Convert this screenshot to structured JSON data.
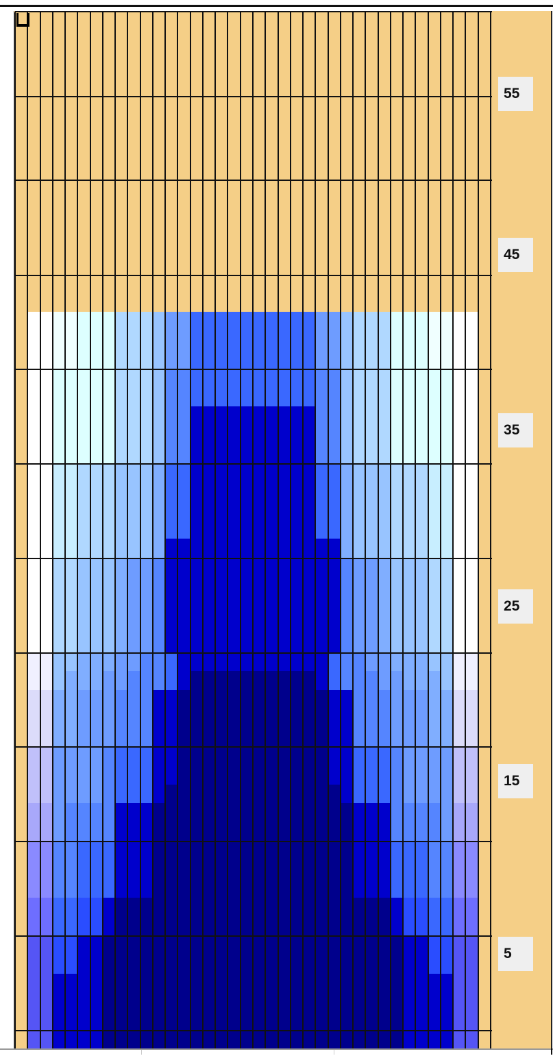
{
  "grid": {
    "columns": 38,
    "symmetric": true,
    "palette": {
      "T": "#F5CF87",
      "W": "#FFFFFF",
      "a": "#F0FFFF",
      "b": "#DDFFFF",
      "c": "#C8EEFF",
      "d": "#B0D8FF",
      "e": "#98C4FF",
      "f": "#80AEFF",
      "g": "#6E9CFF",
      "h": "#5585FF",
      "i": "#3A68FF",
      "j": "#2A4DFF",
      "k": "#0000CC",
      "n": "#00008C",
      "p": "#F0F0FF",
      "q": "#DCDCFA",
      "r": "#C0C0FA",
      "s": "#A8A8FA",
      "t": "#8A8AFF",
      "u": "#6E6EFF",
      "v": "#5555F5"
    },
    "edge_color": "T",
    "half_rows_top_to_bottom": [
      "WWaabbbdddeggiiiii",
      "WWaabbbdddeggiiiii",
      "WWaabbbdddeggiiiii",
      "WWbbbbbdddehhiiiii",
      "WWbbbbbdddehhiiiii",
      "WWbbbbbdddehhkkkkk",
      "WWbbbbbdddehhkkkkk",
      "WWbbbbbdddehhkkkkk",
      "WWccdddeeefiikkkkk",
      "WWccdddeeefiikkkkk",
      "WWccdddeeefiikkkkk",
      "WWccdddeeefiikkkkk",
      "WWccdddeeefkkkkkkk",
      "WWddeeefgghkkkkkkk",
      "WWddeeefgghkkkkkkk",
      "WWddeeefgghkkkkkkk",
      "WWddeeefgghkkkkkkk",
      "WWddeeefgghkkkkkkk",
      "ppeefffgghhikkkkkk",
      "ppefffgghhhiknnnnn",
      "qqffggghhhkknnnnnn",
      "qqffggghhhkknnnnnn",
      "qqffggghhhkknnnnnn",
      "rrgggghiiikknnnnnn",
      "rrgggghiiikknnnnnn",
      "rrgggghiiiknnnnnnn",
      "ssghhhhkkknnnnnnnn",
      "ssghhhhkkknnnnnnnn",
      "tthhiiikkknnnnnnnn",
      "tthhiiikkknnnnnnnn",
      "tthhiiikkknnnnnnnn",
      "uuiijjknnnnnnnnnnn",
      "uuiijjknnnnnnnnnnn",
      "vvjjkknnnnnnnnnnnn",
      "vvjjkknnnnnnnnnnnn",
      "vvkkkknnnnnnnnnnnn",
      "vvkkkknnnnnnnnnnnn",
      "vvkkkknnnnnnnnnnnn",
      "vvkkkknnnnnnnnnnnn"
    ]
  },
  "row_labels": [
    "55",
    "45",
    "35",
    "25",
    "15",
    "5"
  ]
}
